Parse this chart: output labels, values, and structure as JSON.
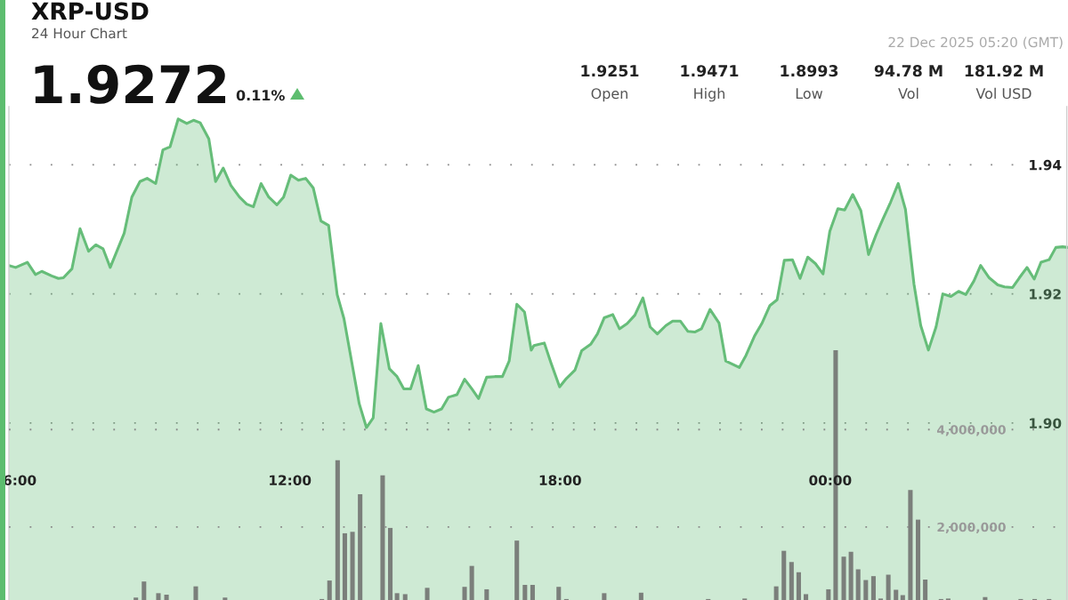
{
  "chart_data": {
    "type": "area",
    "title": "XRP-USD",
    "subtitle": "24 Hour Chart",
    "annotations": [
      "1.9272",
      "0.11%",
      "1.9251",
      "Open",
      "1.9471",
      "High",
      "1.8993",
      "Low",
      "94.78 M",
      "Vol",
      "181.92 M",
      "Vol USD",
      "22 Dec 2025 05:20 (GMT)"
    ],
    "xlim": [
      5.76,
      29.28
    ],
    "xticks": [
      {
        "value": 6,
        "label": "6:00"
      },
      {
        "value": 12,
        "label": "12:00"
      },
      {
        "value": 18,
        "label": "18:00"
      },
      {
        "value": 24,
        "label": "00:00"
      }
    ],
    "ylim": [
      1.8726,
      1.949
    ],
    "yticks": [
      {
        "value": 1.9,
        "label": "1.90"
      },
      1.92,
      1.94
    ],
    "y2lim": [
      500000,
      10630000
    ],
    "y2ticks": [
      {
        "value": 2000000,
        "label": "2,000,000"
      },
      {
        "value": 4000000,
        "label": "4,000,000"
      }
    ],
    "grid": "y",
    "series": [
      {
        "color": "#66bd79",
        "x": [
          5.76,
          5.91,
          6.17,
          6.35,
          6.49,
          6.71,
          6.86,
          6.97,
          7.16,
          7.34,
          7.53,
          7.69,
          7.85,
          8.01,
          8.32,
          8.49,
          8.67,
          8.83,
          9.02,
          9.18,
          9.34,
          9.52,
          9.71,
          9.86,
          10.01,
          10.2,
          10.35,
          10.52,
          10.69,
          10.88,
          11.04,
          11.19,
          11.36,
          11.53,
          11.71,
          11.86,
          12.02,
          12.19,
          12.35,
          12.52,
          12.69,
          12.86,
          13.05,
          13.2,
          13.54,
          13.7,
          13.85,
          14.02,
          14.21,
          14.38,
          14.53,
          14.68,
          14.85,
          15.03,
          15.2,
          15.37,
          15.52,
          15.71,
          15.88,
          16.04,
          16.19,
          16.37,
          16.55,
          16.72,
          16.87,
          17.04,
          17.21,
          17.36,
          17.42,
          17.65,
          17.8,
          17.99,
          18.14,
          18.33,
          18.48,
          18.68,
          18.83,
          18.98,
          19.17,
          19.32,
          19.49,
          19.66,
          19.84,
          20.0,
          20.16,
          20.35,
          20.5,
          20.67,
          20.84,
          20.99,
          21.14,
          21.33,
          21.53,
          21.68,
          21.98,
          22.13,
          22.32,
          22.48,
          22.66,
          22.82,
          22.98,
          23.16,
          23.33,
          23.5,
          23.67,
          23.84,
          23.99,
          24.17,
          24.32,
          24.5,
          24.68,
          24.85,
          25.02,
          25.17,
          25.34,
          25.51,
          25.67,
          25.86,
          26.01,
          26.18,
          26.35,
          26.5,
          26.68,
          26.85,
          27.01,
          27.19,
          27.34,
          27.53,
          27.72,
          27.87,
          28.05,
          28.2,
          28.37,
          28.53,
          28.68,
          28.86,
          29.01,
          29.16,
          29.28
        ],
        "values": [
          1.9244,
          1.9241,
          1.9249,
          1.923,
          1.9235,
          1.9228,
          1.9224,
          1.9225,
          1.9239,
          1.9301,
          1.9266,
          1.9276,
          1.927,
          1.9241,
          1.9294,
          1.935,
          1.9374,
          1.9379,
          1.9371,
          1.9423,
          1.9428,
          1.9471,
          1.9464,
          1.9469,
          1.9465,
          1.944,
          1.9374,
          1.9395,
          1.9368,
          1.935,
          1.9339,
          1.9335,
          1.9371,
          1.935,
          1.9338,
          1.935,
          1.9384,
          1.9376,
          1.9379,
          1.9364,
          1.9313,
          1.9306,
          1.9199,
          1.9162,
          1.903,
          1.8993,
          1.9008,
          1.9154,
          1.9084,
          1.9072,
          1.9053,
          1.9053,
          1.9089,
          1.9022,
          1.9017,
          1.9022,
          1.904,
          1.9044,
          1.9068,
          1.9053,
          1.9038,
          1.9071,
          1.9072,
          1.9072,
          1.9096,
          1.9184,
          1.9172,
          1.9113,
          1.912,
          1.9124,
          1.9093,
          1.9056,
          1.9069,
          1.9082,
          1.9112,
          1.9122,
          1.9138,
          1.9163,
          1.9168,
          1.9146,
          1.9154,
          1.9167,
          1.9194,
          1.9149,
          1.9138,
          1.9151,
          1.9158,
          1.9158,
          1.9142,
          1.9141,
          1.9146,
          1.9176,
          1.9155,
          1.9096,
          1.9086,
          1.9105,
          1.9135,
          1.9154,
          1.9182,
          1.9191,
          1.9252,
          1.9253,
          1.9224,
          1.9257,
          1.9247,
          1.9231,
          1.9297,
          1.9332,
          1.933,
          1.9354,
          1.9329,
          1.9261,
          1.9292,
          1.9316,
          1.9342,
          1.9371,
          1.9331,
          1.9215,
          1.9151,
          1.9113,
          1.9149,
          1.92,
          1.9196,
          1.9204,
          1.9199,
          1.922,
          1.9244,
          1.9225,
          1.9214,
          1.9211,
          1.921,
          1.9225,
          1.9241,
          1.9223,
          1.9249,
          1.9253,
          1.9272,
          1.9273,
          1.9272
        ]
      },
      {
        "type": "bar",
        "axis": "y2",
        "color": "#7b7f7b",
        "x": [
          8.58,
          8.76,
          9.08,
          9.26,
          9.91,
          10.56,
          12.71,
          12.88,
          13.06,
          13.22,
          13.39,
          13.56,
          14.06,
          14.23,
          14.38,
          14.56,
          15.05,
          15.88,
          16.04,
          16.37,
          17.04,
          17.22,
          17.39,
          17.97,
          18.14,
          18.98,
          19.8,
          21.29,
          22.1,
          22.8,
          22.97,
          23.14,
          23.3,
          23.46,
          23.96,
          24.12,
          24.3,
          24.46,
          24.62,
          24.79,
          24.96,
          25.12,
          25.29,
          25.46,
          25.61,
          25.78,
          25.95,
          26.11,
          26.46,
          26.62,
          27.44,
          28.23,
          28.54,
          28.86
        ],
        "values": [
          550000,
          880000,
          640000,
          610000,
          780000,
          550000,
          520000,
          900000,
          3370000,
          1870000,
          1900000,
          2670000,
          3060000,
          1980000,
          640000,
          620000,
          750000,
          770000,
          1200000,
          720000,
          1720000,
          810000,
          810000,
          770000,
          520000,
          640000,
          650000,
          520000,
          530000,
          780000,
          1510000,
          1280000,
          1070000,
          620000,
          720000,
          5630000,
          1390000,
          1490000,
          1130000,
          910000,
          990000,
          530000,
          1020000,
          710000,
          600000,
          2760000,
          2150000,
          920000,
          520000,
          530000,
          560000,
          520000,
          520000,
          520000
        ]
      }
    ]
  }
}
